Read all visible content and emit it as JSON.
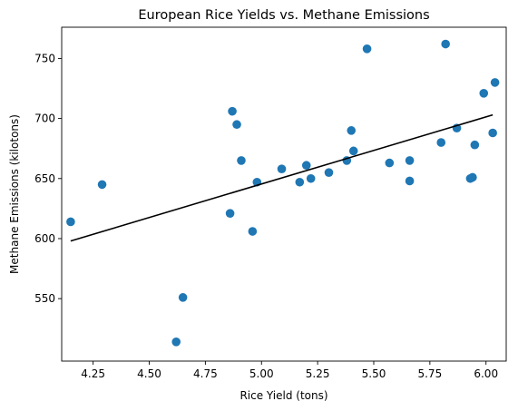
{
  "chart_data": {
    "type": "scatter",
    "title": "European Rice Yields vs. Methane Emissions",
    "xlabel": "Rice Yield (tons)",
    "ylabel": "Methane Emissions (kilotons)",
    "xlim": [
      4.11,
      6.09
    ],
    "ylim": [
      498,
      776
    ],
    "x_ticks": [
      4.25,
      4.5,
      4.75,
      5.0,
      5.25,
      5.5,
      5.75,
      6.0
    ],
    "x_tick_labels": [
      "4.25",
      "4.50",
      "4.75",
      "5.00",
      "5.25",
      "5.50",
      "5.75",
      "6.00"
    ],
    "y_ticks": [
      550,
      600,
      650,
      700,
      750
    ],
    "y_tick_labels": [
      "550",
      "600",
      "650",
      "700",
      "750"
    ],
    "grid": false,
    "colors": {
      "points": "#1f77b4",
      "trendline": "#000000"
    },
    "series": [
      {
        "type": "scatter",
        "x": [
          4.15,
          4.29,
          4.62,
          4.65,
          4.86,
          4.87,
          4.89,
          4.91,
          4.96,
          4.98,
          5.09,
          5.17,
          5.2,
          5.22,
          5.3,
          5.38,
          5.4,
          5.41,
          5.47,
          5.57,
          5.66,
          5.66,
          5.8,
          5.82,
          5.87,
          5.93,
          5.94,
          5.95,
          5.99,
          6.03,
          6.04
        ],
        "y": [
          614,
          645,
          514,
          551,
          621,
          706,
          695,
          665,
          606,
          647,
          658,
          647,
          661,
          650,
          655,
          665,
          690,
          673,
          758,
          663,
          648,
          665,
          680,
          762,
          692,
          650,
          651,
          678,
          721,
          688,
          730
        ]
      },
      {
        "type": "line",
        "x": [
          4.15,
          6.03
        ],
        "y": [
          598,
          703
        ]
      }
    ]
  }
}
